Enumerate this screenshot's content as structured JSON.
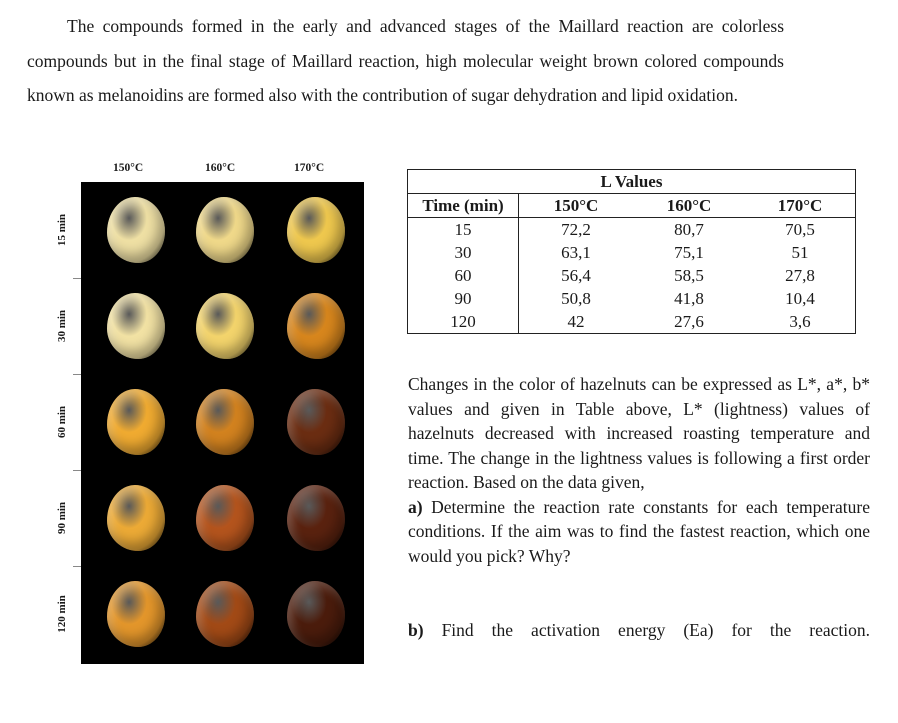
{
  "intro": {
    "text": "The compounds formed in the early and advanced stages of the Maillard reaction are colorless compounds but in the final stage of Maillard reaction, high molecular weight brown colored compounds known as melanoidins are formed also with the contribution of sugar dehydration and lipid oxidation."
  },
  "photo_grid": {
    "columns": [
      "150°C",
      "160°C",
      "170°C"
    ],
    "rows": [
      "15 min",
      "30 min",
      "60 min",
      "90 min",
      "120 min"
    ],
    "nut_colors": [
      [
        "#efe0a4",
        "#f0d98a",
        "#efc84e"
      ],
      [
        "#f2e2a4",
        "#f3d46c",
        "#d7861d"
      ],
      [
        "#f0ab31",
        "#d2821f",
        "#6b2d12"
      ],
      [
        "#ecaa36",
        "#b4541d",
        "#5a220f"
      ],
      [
        "#e3962b",
        "#a24a16",
        "#4b1c0c"
      ]
    ]
  },
  "table": {
    "title": "L Values",
    "headers": [
      "Time (min)",
      "150°C",
      "160°C",
      "170°C"
    ],
    "rows": [
      [
        "15",
        "72,2",
        "80,7",
        "70,5"
      ],
      [
        "30",
        "63,1",
        "75,1",
        "51"
      ],
      [
        "60",
        "56,4",
        "58,5",
        "27,8"
      ],
      [
        "90",
        "50,8",
        "41,8",
        "10,4"
      ],
      [
        "120",
        "42",
        "27,6",
        "3,6"
      ]
    ]
  },
  "right_text": {
    "paragraph": "Changes in the color of hazelnuts can be expressed as L*, a*, b* values and given in Table above, L* (lightness) values of hazelnuts decreased with increased roasting temperature and time. The change in the lightness values is following a first order reaction. Based on the data given,",
    "part_a_label": "a)",
    "part_a_text": " Determine the reaction rate constants for each temperature conditions. If the aim was to find the fastest reaction, which one would you pick? Why?",
    "part_b_label": "b)",
    "part_b_text": " Find the activation energy (Ea) for the reaction."
  }
}
